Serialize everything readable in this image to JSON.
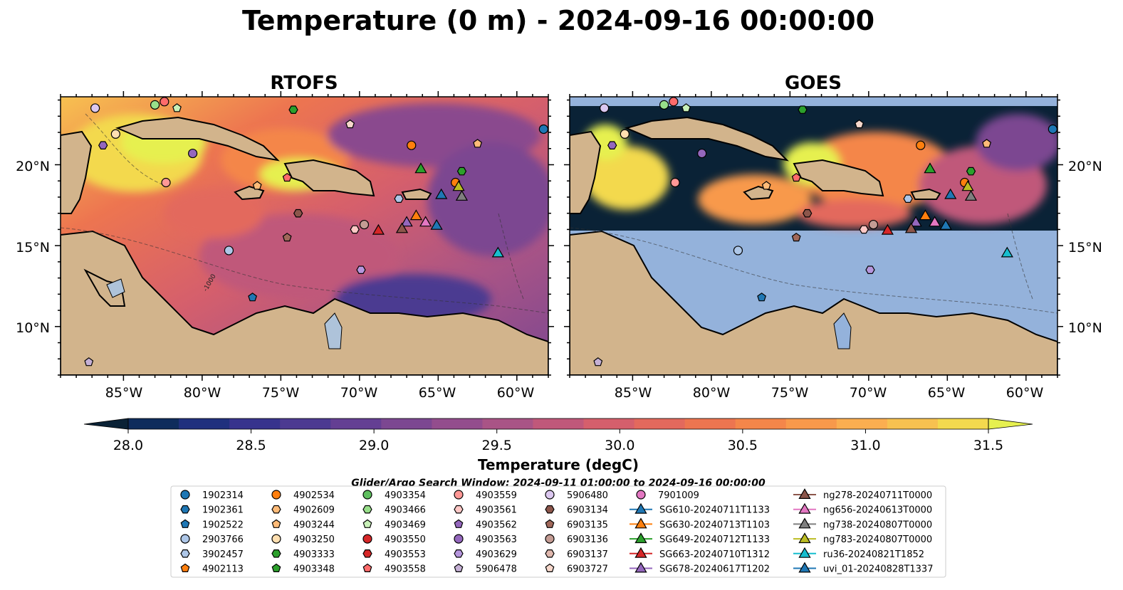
{
  "figure": {
    "title": "Temperature (0 m) - 2024-09-16 00:00:00"
  },
  "panels": [
    {
      "title": "RTOFS"
    },
    {
      "title": "GOES"
    }
  ],
  "map": {
    "lon_ticks": [
      "85°W",
      "80°W",
      "75°W",
      "70°W",
      "65°W",
      "60°W"
    ],
    "lat_ticks": [
      "20°N",
      "15°N",
      "10°N"
    ],
    "bathymetry_contour_label": "-1000"
  },
  "colorbar": {
    "label": "Temperature (degC)",
    "ticks": [
      "28.0",
      "28.5",
      "29.0",
      "29.5",
      "30.0",
      "30.5",
      "31.0",
      "31.5"
    ],
    "colors": [
      "#0a2236",
      "#0e2c5c",
      "#20307e",
      "#37338d",
      "#4c3a91",
      "#643f93",
      "#7c4791",
      "#934d8d",
      "#a95486",
      "#c0587a",
      "#d55f6c",
      "#e3695d",
      "#ed7550",
      "#f4864a",
      "#f8994b",
      "#fbae50",
      "#f7c150",
      "#f3d94e",
      "#e6f04f"
    ]
  },
  "legend": {
    "search_window": "Glider/Argo Search Window: 2024-09-11 01:00:00 to 2024-09-16 00:00:00",
    "columns": [
      [
        {
          "label": "1902314",
          "marker": "circle",
          "color": "#1f77b4"
        },
        {
          "label": "1902361",
          "marker": "hexagon",
          "color": "#1f77b4"
        },
        {
          "label": "1902522",
          "marker": "pentagon",
          "color": "#1f77b4"
        },
        {
          "label": "2903766",
          "marker": "circle",
          "color": "#aec7e8"
        },
        {
          "label": "3902457",
          "marker": "hexagon",
          "color": "#aec7e8"
        },
        {
          "label": "4902113",
          "marker": "pentagon",
          "color": "#ff7f0e"
        }
      ],
      [
        {
          "label": "4902534",
          "marker": "circle",
          "color": "#ff7f0e"
        },
        {
          "label": "4902609",
          "marker": "hexagon",
          "color": "#ffbb78"
        },
        {
          "label": "4903244",
          "marker": "pentagon",
          "color": "#ffbb78"
        },
        {
          "label": "4903250",
          "marker": "circle",
          "color": "#ffdfb0"
        },
        {
          "label": "4903333",
          "marker": "hexagon",
          "color": "#2ca02c"
        },
        {
          "label": "4903348",
          "marker": "pentagon",
          "color": "#2ca02c"
        }
      ],
      [
        {
          "label": "4903354",
          "marker": "circle",
          "color": "#5fbf5f"
        },
        {
          "label": "4903466",
          "marker": "hexagon",
          "color": "#98df8a"
        },
        {
          "label": "4903469",
          "marker": "pentagon",
          "color": "#c8f0b8"
        },
        {
          "label": "4903550",
          "marker": "circle",
          "color": "#d62728"
        },
        {
          "label": "4903553",
          "marker": "hexagon",
          "color": "#d62728"
        },
        {
          "label": "4903558",
          "marker": "pentagon",
          "color": "#ff6b6b"
        }
      ],
      [
        {
          "label": "4903559",
          "marker": "circle",
          "color": "#ff9896"
        },
        {
          "label": "4903561",
          "marker": "hexagon",
          "color": "#ffc8c6"
        },
        {
          "label": "4903562",
          "marker": "pentagon",
          "color": "#9467bd"
        },
        {
          "label": "4903563",
          "marker": "circle",
          "color": "#9467bd"
        },
        {
          "label": "4903629",
          "marker": "hexagon",
          "color": "#b696dd"
        },
        {
          "label": "5906478",
          "marker": "pentagon",
          "color": "#c5b0d5"
        }
      ],
      [
        {
          "label": "5906480",
          "marker": "circle",
          "color": "#dcc8f0"
        },
        {
          "label": "6903134",
          "marker": "hexagon",
          "color": "#8c564b"
        },
        {
          "label": "6903135",
          "marker": "pentagon",
          "color": "#a0685a"
        },
        {
          "label": "6903136",
          "marker": "circle",
          "color": "#c49c94"
        },
        {
          "label": "6903137",
          "marker": "hexagon",
          "color": "#e0b8ae"
        },
        {
          "label": "6903727",
          "marker": "pentagon",
          "color": "#f7d8cc"
        }
      ],
      [
        {
          "label": "7901009",
          "marker": "circle",
          "color": "#e377c2"
        },
        {
          "label": "SG610-20240711T1133",
          "marker": "triangle",
          "color": "#1f77b4"
        },
        {
          "label": "SG630-20240713T1103",
          "marker": "triangle",
          "color": "#ff7f0e"
        },
        {
          "label": "SG649-20240712T1133",
          "marker": "triangle",
          "color": "#2ca02c"
        },
        {
          "label": "SG663-20240710T1312",
          "marker": "triangle",
          "color": "#d62728"
        },
        {
          "label": "SG678-20240617T1202",
          "marker": "triangle",
          "color": "#9467bd"
        }
      ],
      [
        {
          "label": "ng278-20240711T0000",
          "marker": "triangle",
          "color": "#8c564b"
        },
        {
          "label": "ng656-20240613T0000",
          "marker": "triangle",
          "color": "#e377c2"
        },
        {
          "label": "ng738-20240807T0000",
          "marker": "triangle",
          "color": "#7f7f7f"
        },
        {
          "label": "ng783-20240807T0000",
          "marker": "triangle",
          "color": "#bcbd22"
        },
        {
          "label": "ru36-20240821T1852",
          "marker": "triangle",
          "color": "#17becf"
        },
        {
          "label": "uvi_01-20240828T1337",
          "marker": "triangle",
          "color": "#1f77b4"
        }
      ]
    ]
  },
  "stations": [
    {
      "lon": -86.8,
      "lat": 23.5,
      "color": "#dcc8f0",
      "marker": "circle"
    },
    {
      "lon": -82.4,
      "lat": 23.9,
      "color": "#ff6b6b",
      "marker": "circle"
    },
    {
      "lon": -83.0,
      "lat": 23.7,
      "color": "#98df8a",
      "marker": "circle"
    },
    {
      "lon": -81.6,
      "lat": 23.5,
      "color": "#c8f0b8",
      "marker": "pentagon"
    },
    {
      "lon": -74.2,
      "lat": 23.4,
      "color": "#2ca02c",
      "marker": "hexagon"
    },
    {
      "lon": -58.3,
      "lat": 22.2,
      "color": "#1f77b4",
      "marker": "circle"
    },
    {
      "lon": -85.5,
      "lat": 21.9,
      "color": "#ffdfb0",
      "marker": "circle"
    },
    {
      "lon": -86.3,
      "lat": 21.2,
      "color": "#9467bd",
      "marker": "hexagon"
    },
    {
      "lon": -80.6,
      "lat": 20.7,
      "color": "#9467bd",
      "marker": "circle"
    },
    {
      "lon": -70.6,
      "lat": 22.5,
      "color": "#f7d8cc",
      "marker": "pentagon"
    },
    {
      "lon": -66.7,
      "lat": 21.2,
      "color": "#ff7f0e",
      "marker": "circle"
    },
    {
      "lon": -62.5,
      "lat": 21.3,
      "color": "#ffbb78",
      "marker": "pentagon"
    },
    {
      "lon": -82.3,
      "lat": 18.9,
      "color": "#ff9896",
      "marker": "circle"
    },
    {
      "lon": -76.5,
      "lat": 18.7,
      "color": "#ffbb78",
      "marker": "pentagon"
    },
    {
      "lon": -74.6,
      "lat": 19.2,
      "color": "#ff6b6b",
      "marker": "pentagon"
    },
    {
      "lon": -63.5,
      "lat": 19.6,
      "color": "#2ca02c",
      "marker": "hexagon"
    },
    {
      "lon": -63.9,
      "lat": 18.9,
      "color": "#ff7f0e",
      "marker": "circle"
    },
    {
      "lon": -67.5,
      "lat": 17.9,
      "color": "#aec7e8",
      "marker": "hexagon"
    },
    {
      "lon": -73.9,
      "lat": 17.0,
      "color": "#8c564b",
      "marker": "hexagon"
    },
    {
      "lon": -74.6,
      "lat": 15.5,
      "color": "#a0685a",
      "marker": "pentagon"
    },
    {
      "lon": -69.7,
      "lat": 16.3,
      "color": "#c49c94",
      "marker": "circle"
    },
    {
      "lon": -70.3,
      "lat": 16.0,
      "color": "#ffc8c6",
      "marker": "hexagon"
    },
    {
      "lon": -78.3,
      "lat": 14.7,
      "color": "#aec7e8",
      "marker": "circle"
    },
    {
      "lon": -69.9,
      "lat": 13.5,
      "color": "#b696dd",
      "marker": "hexagon"
    },
    {
      "lon": -76.8,
      "lat": 11.8,
      "color": "#1f77b4",
      "marker": "pentagon"
    },
    {
      "lon": -87.2,
      "lat": 7.8,
      "color": "#c5b0d5",
      "marker": "pentagon"
    },
    {
      "lon": -66.1,
      "lat": 19.7,
      "color": "#2ca02c",
      "marker": "triangle"
    },
    {
      "lon": -64.8,
      "lat": 18.1,
      "color": "#1f77b4",
      "marker": "triangle"
    },
    {
      "lon": -63.7,
      "lat": 18.6,
      "color": "#bcbd22",
      "marker": "triangle"
    },
    {
      "lon": -63.5,
      "lat": 18.0,
      "color": "#7f7f7f",
      "marker": "triangle"
    },
    {
      "lon": -66.4,
      "lat": 16.8,
      "color": "#ff7f0e",
      "marker": "triangle"
    },
    {
      "lon": -67.0,
      "lat": 16.4,
      "color": "#9467bd",
      "marker": "triangle"
    },
    {
      "lon": -68.8,
      "lat": 15.9,
      "color": "#d62728",
      "marker": "triangle"
    },
    {
      "lon": -67.3,
      "lat": 16.0,
      "color": "#8c564b",
      "marker": "triangle"
    },
    {
      "lon": -65.8,
      "lat": 16.4,
      "color": "#e377c2",
      "marker": "triangle"
    },
    {
      "lon": -65.1,
      "lat": 16.2,
      "color": "#1f77b4",
      "marker": "triangle"
    },
    {
      "lon": -61.2,
      "lat": 14.5,
      "color": "#17becf",
      "marker": "triangle"
    }
  ]
}
